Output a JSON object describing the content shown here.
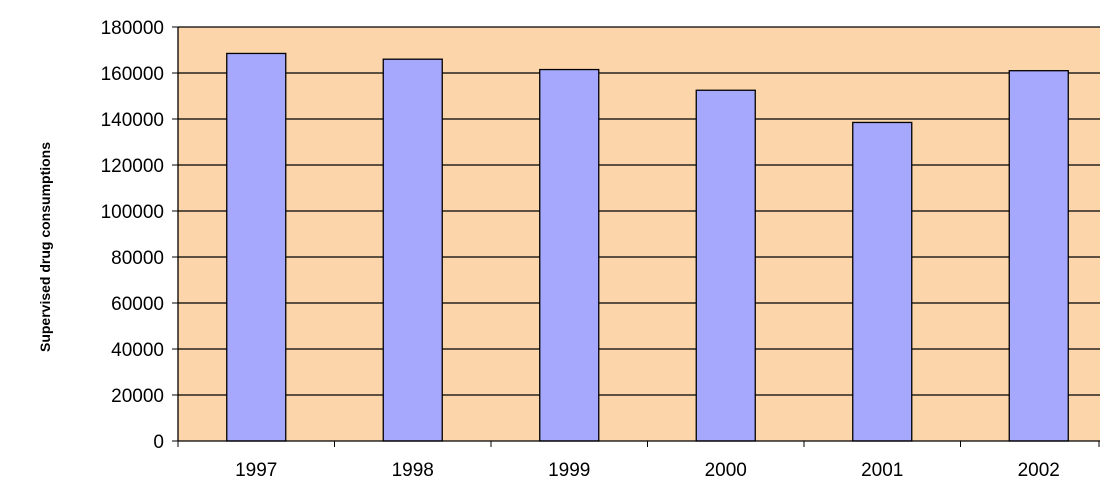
{
  "chart_data": {
    "type": "bar",
    "categories": [
      "1997",
      "1998",
      "1999",
      "2000",
      "2001",
      "2002"
    ],
    "values": [
      168500,
      166000,
      161500,
      152500,
      138500,
      161000
    ],
    "ylabel": "Supervised drug consumptions",
    "xlabel": "",
    "ylim": [
      0,
      180000
    ],
    "yticks": [
      "0",
      "20000",
      "40000",
      "60000",
      "80000",
      "100000",
      "120000",
      "140000",
      "160000",
      "180000"
    ],
    "grid": true,
    "legend": "none",
    "colors": {
      "plot_background": "#fcd5ab",
      "bar_fill": "#a6a8fd",
      "bar_stroke": "#000000",
      "gridline": "#000000"
    }
  }
}
